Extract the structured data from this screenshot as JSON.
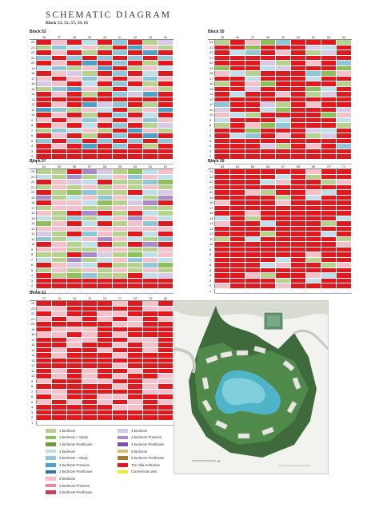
{
  "page": {
    "title": "SCHEMATIC DIAGRAM",
    "subtitle": "Block 53, 55, 57, 59, 61"
  },
  "blocks": [
    {
      "name": "Block 53",
      "stacks": [
        "36",
        "37",
        "38",
        "39",
        "40",
        "41",
        "42",
        "43",
        "44"
      ]
    },
    {
      "name": "Block 55",
      "stacks": [
        "45",
        "46",
        "47",
        "48",
        "49",
        "50",
        "51",
        "52",
        "53"
      ]
    },
    {
      "name": "Block 57",
      "stacks": [
        "54",
        "55",
        "56",
        "57",
        "58",
        "59",
        "60",
        "61",
        "62"
      ]
    },
    {
      "name": "Block 59",
      "stacks": [
        "63",
        "64",
        "65",
        "66",
        "67",
        "68",
        "69",
        "70",
        "71"
      ]
    },
    {
      "name": "Block 61",
      "stacks": [
        "72",
        "73",
        "74",
        "75",
        "76",
        "77",
        "78",
        "79",
        "80"
      ]
    }
  ],
  "floors": [
    "24",
    "23",
    "22",
    "21",
    "20",
    "19",
    "18",
    "17",
    "16",
    "15",
    "14",
    "13",
    "12",
    "11",
    "10",
    "9",
    "8",
    "7",
    "6",
    "5",
    "4",
    "3",
    "2",
    "1"
  ],
  "legend": [
    {
      "label": "1-bedroom",
      "color": "#b7d28f"
    },
    {
      "label": "1-bedroom + Study",
      "color": "#8fbf5a"
    },
    {
      "label": "1-bedroom Penthouse",
      "color": "#6e9b3a"
    },
    {
      "label": "2-bedroom",
      "color": "#bfe0e8"
    },
    {
      "label": "2-bedroom + Study",
      "color": "#8fc6d8"
    },
    {
      "label": "2-bedroom Premium",
      "color": "#4ea0c4"
    },
    {
      "label": "2-bedroom Penthouse",
      "color": "#2b7aa6"
    },
    {
      "label": "3-bedroom",
      "color": "#f4c0c9"
    },
    {
      "label": "3-bedroom Premium",
      "color": "#e58a9c"
    },
    {
      "label": "3-bedroom Penthouse",
      "color": "#c4445f"
    },
    {
      "label": "4-bedroom",
      "color": "#d8c9e6"
    },
    {
      "label": "4-bedroom Premium",
      "color": "#a98bc7"
    },
    {
      "label": "4-bedroom Penthouse",
      "color": "#7a55a6"
    },
    {
      "label": "5-bedroom",
      "color": "#d6c068"
    },
    {
      "label": "5-bedroom Penthouse",
      "color": "#9e7e2e"
    },
    {
      "label": "The Villa Collection",
      "color": "#e0191f"
    },
    {
      "label": "Commercial units",
      "color": "#f5eb2a"
    }
  ],
  "colors": {
    "sold": "#e0191f"
  }
}
